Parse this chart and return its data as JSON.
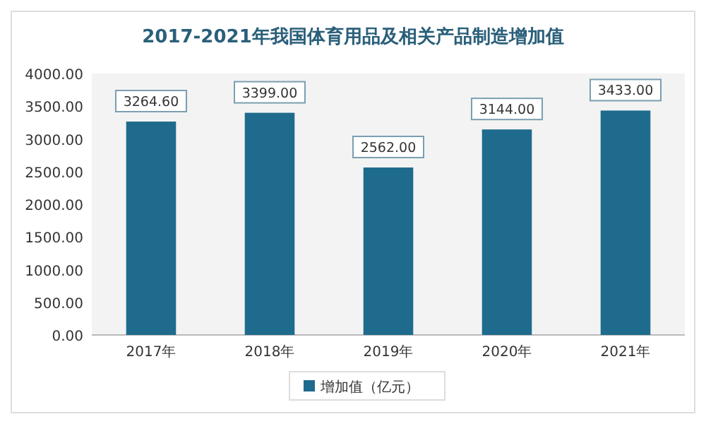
{
  "chart_data": {
    "type": "bar",
    "title": "2017-2021年我国体育用品及相关产品制造增加值",
    "categories": [
      "2017年",
      "2018年",
      "2019年",
      "2020年",
      "2021年"
    ],
    "series": [
      {
        "name": "增加值（亿元）",
        "color": "#1f6b8e",
        "values": [
          3264.6,
          3399.0,
          2562.0,
          3144.0,
          3433.0
        ]
      }
    ],
    "value_labels": [
      "3264.60",
      "3399.00",
      "2562.00",
      "3144.00",
      "3433.00"
    ],
    "ylim": [
      0,
      4000
    ],
    "yticks": [
      {
        "value": 0,
        "label": "0.00"
      },
      {
        "value": 500,
        "label": "500.00"
      },
      {
        "value": 1000,
        "label": "1000.00"
      },
      {
        "value": 1500,
        "label": "1500.00"
      },
      {
        "value": 2000,
        "label": "2000.00"
      },
      {
        "value": 2500,
        "label": "2500.00"
      },
      {
        "value": 3000,
        "label": "3000.00"
      },
      {
        "value": 3500,
        "label": "3500.00"
      },
      {
        "value": 4000,
        "label": "4000.00"
      }
    ],
    "grid": false,
    "legend": "bottom"
  }
}
